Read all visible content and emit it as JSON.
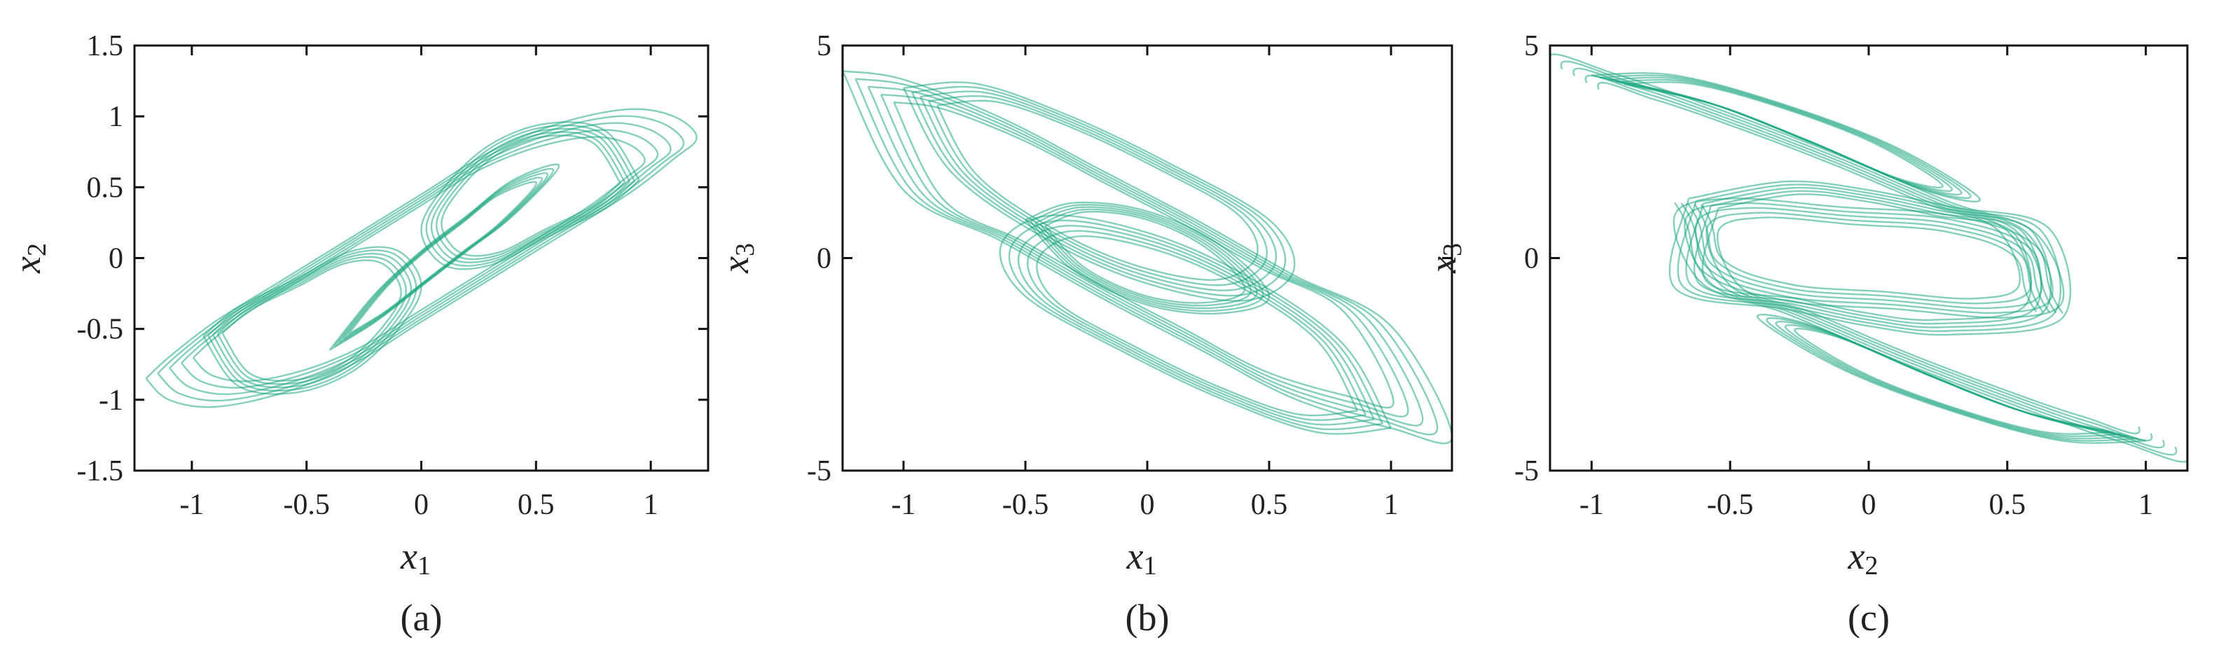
{
  "colors": {
    "trajectory": "#1fa783",
    "axes": "#111111"
  },
  "chart_data": [
    {
      "type": "line",
      "panel_label": "(a)",
      "xlabel": "x",
      "xlabel_sub": "1",
      "ylabel": "x",
      "ylabel_sub": "2",
      "xlim": [
        -1.25,
        1.25
      ],
      "ylim": [
        -1.5,
        1.5
      ],
      "xticks": [
        -1,
        -0.5,
        0,
        0.5,
        1
      ],
      "xtick_labels": [
        "-1",
        "-0.5",
        "0",
        "0.5",
        "1"
      ],
      "yticks": [
        -1.5,
        -1,
        -0.5,
        0,
        0.5,
        1,
        1.5
      ],
      "ytick_labels": [
        "-1.5",
        "-1",
        "-0.5",
        "0",
        "0.5",
        "1",
        "1.5"
      ],
      "grid": false,
      "series": [
        {
          "x": [
            -1.2,
            -1.1,
            -0.9,
            -0.6,
            -0.3,
            0.0,
            0.3,
            0.6,
            0.9,
            1.1,
            1.2,
            1.1,
            0.9,
            0.6,
            0.3,
            0.0,
            -0.3,
            -0.6,
            -0.9,
            -1.1,
            -1.2
          ],
          "y": [
            -0.85,
            -1.0,
            -1.05,
            -0.95,
            -0.75,
            -0.45,
            -0.15,
            0.15,
            0.45,
            0.7,
            0.85,
            1.0,
            1.05,
            0.95,
            0.75,
            0.45,
            0.15,
            -0.15,
            -0.45,
            -0.7,
            -0.85
          ]
        },
        {
          "x": [
            -0.95,
            -0.8,
            -0.55,
            -0.3,
            -0.1,
            0.0,
            -0.1,
            -0.3,
            -0.55,
            -0.8,
            -0.95
          ],
          "y": [
            -0.55,
            -0.9,
            -0.95,
            -0.8,
            -0.5,
            -0.2,
            0.05,
            0.05,
            -0.15,
            -0.35,
            -0.55
          ]
        },
        {
          "x": [
            0.95,
            0.8,
            0.55,
            0.3,
            0.1,
            0.0,
            0.1,
            0.3,
            0.55,
            0.8,
            0.95
          ],
          "y": [
            0.55,
            0.9,
            0.95,
            0.8,
            0.5,
            0.2,
            -0.05,
            -0.05,
            0.15,
            0.35,
            0.55
          ]
        },
        {
          "x": [
            -0.4,
            -0.2,
            0.0,
            0.2,
            0.4,
            0.6,
            0.4,
            0.2,
            0.0,
            -0.2,
            -0.4
          ],
          "y": [
            -0.65,
            -0.45,
            -0.2,
            0.05,
            0.3,
            0.65,
            0.55,
            0.3,
            0.05,
            -0.25,
            -0.65
          ]
        }
      ]
    },
    {
      "type": "line",
      "panel_label": "(b)",
      "xlabel": "x",
      "xlabel_sub": "1",
      "ylabel": "x",
      "ylabel_sub": "3",
      "xlim": [
        -1.25,
        1.25
      ],
      "ylim": [
        -5,
        5
      ],
      "xticks": [
        -1,
        -0.5,
        0,
        0.5,
        1
      ],
      "xtick_labels": [
        "-1",
        "-0.5",
        "0",
        "0.5",
        "1"
      ],
      "yticks": [
        -5,
        0,
        5
      ],
      "ytick_labels": [
        "-5",
        "0",
        "5"
      ],
      "grid": false,
      "series": [
        {
          "x": [
            -1.25,
            -1.0,
            -0.6,
            -0.2,
            0.2,
            0.6,
            1.0,
            1.25,
            1.0,
            0.6,
            0.2,
            -0.2,
            -0.6,
            -1.0,
            -1.25
          ],
          "y": [
            4.4,
            4.2,
            3.3,
            2.1,
            0.9,
            -0.4,
            -1.6,
            -4.2,
            -4.0,
            -3.3,
            -2.1,
            -0.9,
            0.4,
            1.6,
            4.4
          ]
        },
        {
          "x": [
            -1.0,
            -0.7,
            -0.3,
            0.1,
            0.5,
            0.6,
            0.4,
            0.0,
            -0.4,
            -0.8,
            -1.0
          ],
          "y": [
            4.0,
            4.1,
            3.3,
            2.2,
            0.9,
            -0.3,
            -1.0,
            -0.6,
            0.4,
            2.0,
            4.0
          ]
        },
        {
          "x": [
            1.0,
            0.7,
            0.3,
            -0.1,
            -0.5,
            -0.6,
            -0.4,
            0.0,
            0.4,
            0.8,
            1.0
          ],
          "y": [
            -4.0,
            -4.1,
            -3.3,
            -2.2,
            -0.9,
            0.3,
            1.0,
            0.6,
            -0.4,
            -2.0,
            -4.0
          ]
        },
        {
          "x": [
            -0.5,
            -0.3,
            0.0,
            0.3,
            0.5,
            0.3,
            0.0,
            -0.3,
            -0.5
          ],
          "y": [
            0.9,
            1.3,
            1.1,
            0.3,
            -0.9,
            -1.3,
            -1.1,
            -0.3,
            0.9
          ]
        }
      ]
    },
    {
      "type": "line",
      "panel_label": "(c)",
      "xlabel": "x",
      "xlabel_sub": "2",
      "ylabel": "x",
      "ylabel_sub": "3",
      "xlim": [
        -1.15,
        1.15
      ],
      "ylim": [
        -5,
        5
      ],
      "xticks": [
        -1,
        -0.5,
        0,
        0.5,
        1
      ],
      "xtick_labels": [
        "-1",
        "-0.5",
        "0",
        "0.5",
        "1"
      ],
      "yticks": [
        -5,
        0,
        5
      ],
      "ytick_labels": [
        "-5",
        "0",
        "5"
      ],
      "grid": false,
      "series": [
        {
          "x": [
            -1.15,
            -0.9,
            -0.5,
            -0.1,
            0.3,
            0.6,
            0.7,
            0.5,
            0.1,
            -0.3,
            -0.6,
            -0.7
          ],
          "y": [
            4.6,
            4.3,
            3.4,
            2.4,
            1.3,
            0.6,
            -1.0,
            -1.4,
            -1.2,
            -1.0,
            -0.3,
            1.3
          ]
        },
        {
          "x": [
            1.15,
            0.9,
            0.5,
            0.1,
            -0.3,
            -0.6,
            -0.7,
            -0.5,
            -0.1,
            0.3,
            0.6,
            0.7
          ],
          "y": [
            -4.6,
            -4.3,
            -3.4,
            -2.4,
            -1.3,
            -0.6,
            1.0,
            1.4,
            1.2,
            1.0,
            0.3,
            -1.3
          ]
        },
        {
          "x": [
            -0.65,
            -0.3,
            0.0,
            0.3,
            0.65,
            0.7,
            0.3,
            0.0,
            -0.3,
            -0.7,
            -0.65
          ],
          "y": [
            1.4,
            1.8,
            1.6,
            1.2,
            0.7,
            -1.4,
            -1.8,
            -1.6,
            -1.2,
            -0.7,
            1.4
          ]
        },
        {
          "x": [
            -1.0,
            -0.7,
            -0.3,
            0.1,
            0.4,
            0.2,
            -0.2,
            -0.6,
            -1.0
          ],
          "y": [
            4.3,
            4.3,
            3.6,
            2.6,
            1.4,
            1.6,
            2.7,
            3.7,
            4.3
          ]
        },
        {
          "x": [
            1.0,
            0.7,
            0.3,
            -0.1,
            -0.4,
            -0.2,
            0.2,
            0.6,
            1.0
          ],
          "y": [
            -4.3,
            -4.3,
            -3.6,
            -2.6,
            -1.4,
            -1.6,
            -2.7,
            -3.7,
            -4.3
          ]
        }
      ]
    }
  ]
}
